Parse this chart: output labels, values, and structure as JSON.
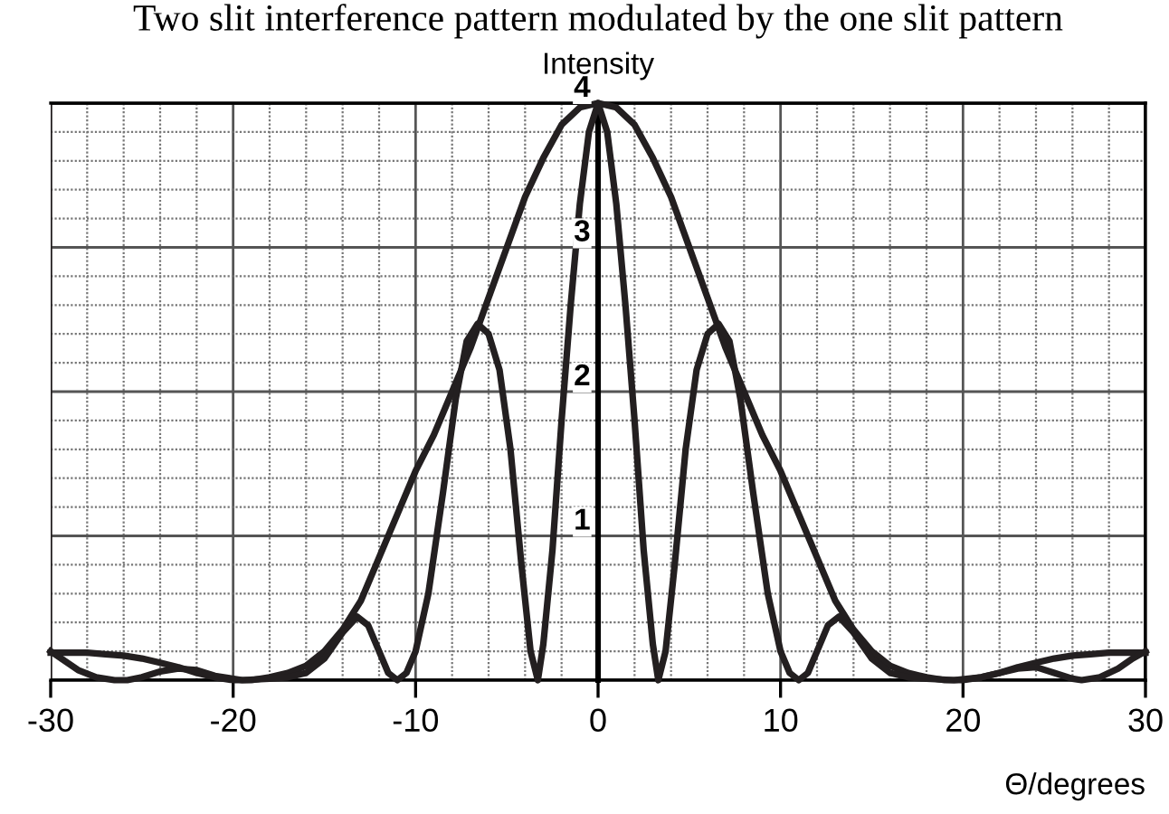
{
  "chart_data": {
    "type": "line",
    "title": "Two slit interference pattern modulated by the one slit pattern",
    "xlabel": "Θ/degrees",
    "ylabel": "Intensity",
    "series": [
      {
        "color": "#231f20",
        "x": [
          -30,
          -29,
          -28,
          -27,
          -26,
          -25,
          -24,
          -23,
          -22,
          -21,
          -20,
          -19,
          -18,
          -17,
          -16,
          -15,
          -14,
          -13,
          -12,
          -11,
          -10,
          -9,
          -8,
          -7,
          -6,
          -5,
          -4,
          -3,
          -2,
          -1,
          0,
          1,
          2,
          3,
          4,
          5,
          6,
          7,
          8,
          9,
          10,
          11,
          12,
          13,
          14,
          15,
          16,
          17,
          18,
          19,
          20,
          21,
          22,
          23,
          24,
          25,
          26,
          27,
          28,
          29,
          30
        ],
        "values": [
          0.19,
          0.19,
          0.19,
          0.18,
          0.17,
          0.15,
          0.12,
          0.09,
          0.05,
          0.02,
          0,
          0,
          0.02,
          0.05,
          0.1,
          0.2,
          0.35,
          0.55,
          0.85,
          1.15,
          1.45,
          1.7,
          2.0,
          2.3,
          2.65,
          3.0,
          3.35,
          3.62,
          3.85,
          3.97,
          4.0,
          3.97,
          3.85,
          3.62,
          3.35,
          3.0,
          2.65,
          2.3,
          2.0,
          1.7,
          1.45,
          1.15,
          0.85,
          0.55,
          0.35,
          0.2,
          0.1,
          0.05,
          0.02,
          0,
          0,
          0.02,
          0.05,
          0.09,
          0.12,
          0.15,
          0.17,
          0.18,
          0.19,
          0.19,
          0.19
        ]
      },
      {
        "color": "#231f20",
        "x": [
          -30,
          -29.3,
          -28.5,
          -27.5,
          -26.5,
          -25.8,
          -25,
          -24,
          -23,
          -22,
          -21,
          -19.5,
          -18,
          -17,
          -16,
          -15,
          -14,
          -13.2,
          -12.6,
          -12,
          -11.5,
          -11,
          -10.5,
          -10,
          -9.3,
          -8.5,
          -7.8,
          -7.2,
          -6.6,
          -6,
          -5.4,
          -4.8,
          -4.2,
          -3.7,
          -3.3,
          -3,
          -2.5,
          -2,
          -1.5,
          -1,
          -0.5,
          0,
          0.5,
          1,
          1.5,
          2,
          2.5,
          3,
          3.3,
          3.7,
          4.2,
          4.8,
          5.4,
          6,
          6.6,
          7.2,
          7.8,
          8.5,
          9.3,
          10,
          10.5,
          11,
          11.5,
          12,
          12.6,
          13.2,
          14,
          15,
          16,
          17,
          18,
          19.5,
          21,
          22,
          23,
          24,
          25,
          26,
          26.5,
          27.5,
          28.5,
          29.3,
          30
        ],
        "values": [
          0.2,
          0.14,
          0.07,
          0.02,
          0,
          0,
          0.02,
          0.06,
          0.08,
          0.07,
          0.03,
          0,
          0.01,
          0.02,
          0.05,
          0.15,
          0.33,
          0.44,
          0.38,
          0.2,
          0.05,
          0,
          0.05,
          0.2,
          0.6,
          1.3,
          1.95,
          2.35,
          2.47,
          2.4,
          2.15,
          1.6,
          0.8,
          0.2,
          0,
          0.25,
          0.9,
          1.8,
          2.6,
          3.3,
          3.8,
          4.0,
          3.8,
          3.3,
          2.6,
          1.8,
          0.9,
          0.25,
          0,
          0.2,
          0.8,
          1.6,
          2.15,
          2.4,
          2.47,
          2.35,
          1.95,
          1.3,
          0.6,
          0.2,
          0.05,
          0,
          0.05,
          0.2,
          0.38,
          0.44,
          0.33,
          0.15,
          0.05,
          0.02,
          0.01,
          0,
          0.02,
          0.05,
          0.08,
          0.09,
          0.05,
          0.01,
          0,
          0.02,
          0.08,
          0.15,
          0.2
        ]
      }
    ],
    "xlim": [
      -30,
      30
    ],
    "xticks": [
      -30,
      -20,
      -10,
      0,
      10,
      20,
      30
    ],
    "ylim": [
      0,
      4
    ],
    "yticks": [
      1,
      2,
      3,
      4
    ],
    "grid": true,
    "legend": false,
    "marker": "none",
    "line_style": "solid"
  }
}
